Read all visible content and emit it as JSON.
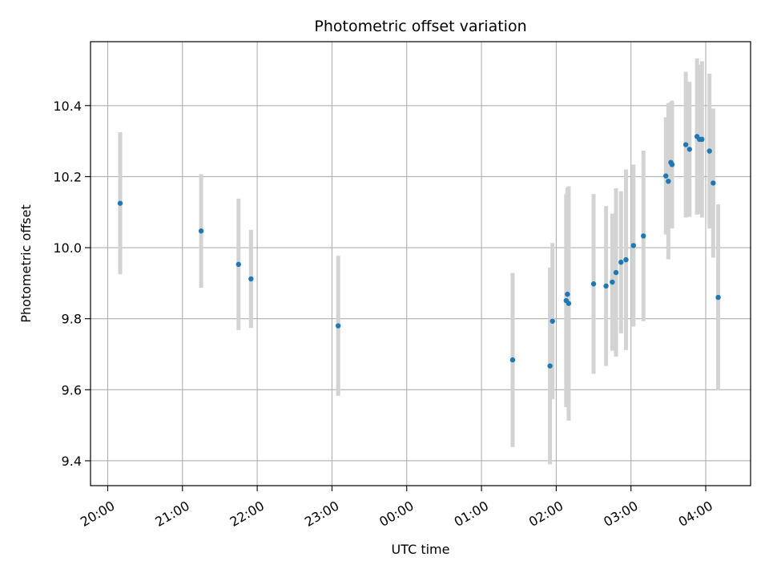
{
  "chart_data": {
    "type": "scatter",
    "title": "Photometric offset variation",
    "xlabel": "UTC time",
    "ylabel": "Photometric offset",
    "grid": true,
    "x_tick_labels": [
      "20:00",
      "21:00",
      "22:00",
      "23:00",
      "00:00",
      "01:00",
      "02:00",
      "03:00",
      "04:00"
    ],
    "x_tick_hours": [
      0,
      1,
      2,
      3,
      4,
      5,
      6,
      7,
      8
    ],
    "x_origin": "20:00",
    "xlim_hours": [
      -0.23,
      8.6
    ],
    "ylim": [
      9.33,
      10.58
    ],
    "y_ticks": [
      9.4,
      9.6,
      9.8,
      10.0,
      10.2,
      10.4
    ],
    "y_tick_labels": [
      "9.4",
      "9.6",
      "9.8",
      "10.0",
      "10.2",
      "10.4"
    ],
    "marker_color": "#1f77b4",
    "errorbar_color": "#d3d3d3",
    "points": [
      {
        "t": "20:10",
        "y": 10.125,
        "err": 0.2
      },
      {
        "t": "21:15",
        "y": 10.047,
        "err": 0.16
      },
      {
        "t": "21:45",
        "y": 9.953,
        "err": 0.185
      },
      {
        "t": "21:55",
        "y": 9.912,
        "err": 0.138
      },
      {
        "t": "23:05",
        "y": 9.78,
        "err": 0.197
      },
      {
        "t": "01:25",
        "y": 9.684,
        "err": 0.245
      },
      {
        "t": "01:55",
        "y": 9.667,
        "err": 0.277
      },
      {
        "t": "01:57",
        "y": 9.793,
        "err": 0.22
      },
      {
        "t": "02:08",
        "y": 9.851,
        "err": 0.3
      },
      {
        "t": "02:09",
        "y": 9.869,
        "err": 0.3
      },
      {
        "t": "02:10",
        "y": 9.843,
        "err": 0.33
      },
      {
        "t": "02:30",
        "y": 9.898,
        "err": 0.253
      },
      {
        "t": "02:40",
        "y": 9.892,
        "err": 0.225
      },
      {
        "t": "02:45",
        "y": 9.903,
        "err": 0.193
      },
      {
        "t": "02:48",
        "y": 9.93,
        "err": 0.237
      },
      {
        "t": "02:52",
        "y": 9.959,
        "err": 0.2
      },
      {
        "t": "02:56",
        "y": 9.966,
        "err": 0.254
      },
      {
        "t": "03:02",
        "y": 10.006,
        "err": 0.228
      },
      {
        "t": "03:10",
        "y": 10.033,
        "err": 0.24
      },
      {
        "t": "03:28",
        "y": 10.202,
        "err": 0.165
      },
      {
        "t": "03:30",
        "y": 10.187,
        "err": 0.22
      },
      {
        "t": "03:32",
        "y": 10.24,
        "err": 0.17
      },
      {
        "t": "03:33",
        "y": 10.234,
        "err": 0.18
      },
      {
        "t": "03:44",
        "y": 10.29,
        "err": 0.205
      },
      {
        "t": "03:47",
        "y": 10.277,
        "err": 0.19
      },
      {
        "t": "03:53",
        "y": 10.313,
        "err": 0.22
      },
      {
        "t": "03:55",
        "y": 10.305,
        "err": 0.21
      },
      {
        "t": "03:57",
        "y": 10.305,
        "err": 0.22
      },
      {
        "t": "04:03",
        "y": 10.272,
        "err": 0.218
      },
      {
        "t": "04:06",
        "y": 10.182,
        "err": 0.21
      },
      {
        "t": "04:10",
        "y": 9.86,
        "err": 0.262
      }
    ]
  }
}
